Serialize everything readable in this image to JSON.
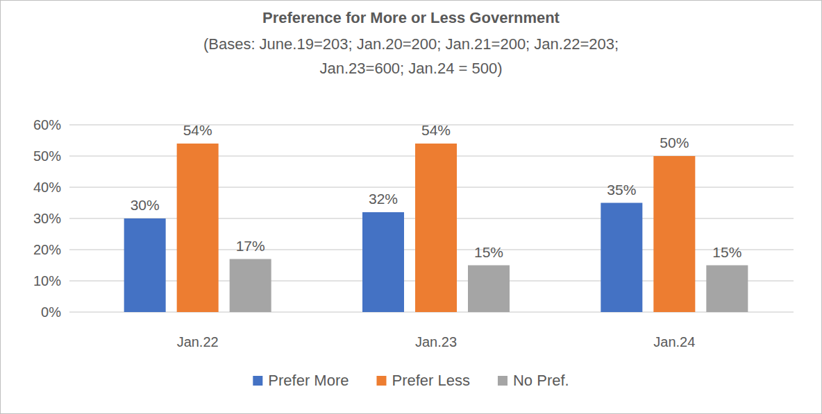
{
  "chart_data": {
    "type": "bar",
    "title": "Preference for More or Less Government",
    "subtitle": [
      "(Bases:  June.19=203; Jan.20=200; Jan.21=200; Jan.22=203;",
      "Jan.23=600; Jan.24 = 500)"
    ],
    "categories": [
      "Jan.22",
      "Jan.23",
      "Jan.24"
    ],
    "series": [
      {
        "name": "Prefer More",
        "color": "#4472c4",
        "values": [
          30,
          32,
          35
        ],
        "value_labels": [
          "30%",
          "32%",
          "35%"
        ]
      },
      {
        "name": "Prefer Less",
        "color": "#ed7d31",
        "values": [
          54,
          54,
          50
        ],
        "value_labels": [
          "54%",
          "54%",
          "50%"
        ]
      },
      {
        "name": "No Pref.",
        "color": "#a5a5a5",
        "values": [
          17,
          15,
          15
        ],
        "value_labels": [
          "17%",
          "15%",
          "15%"
        ]
      }
    ],
    "ylim": [
      0,
      60
    ],
    "yticks": [
      {
        "value": 0,
        "label": "0%"
      },
      {
        "value": 10,
        "label": "10%"
      },
      {
        "value": 20,
        "label": "20%"
      },
      {
        "value": 30,
        "label": "30%"
      },
      {
        "value": 40,
        "label": "40%"
      },
      {
        "value": 50,
        "label": "50%"
      },
      {
        "value": 60,
        "label": "60%"
      }
    ],
    "grid": true,
    "legend": "bottom",
    "data_labels": true
  }
}
